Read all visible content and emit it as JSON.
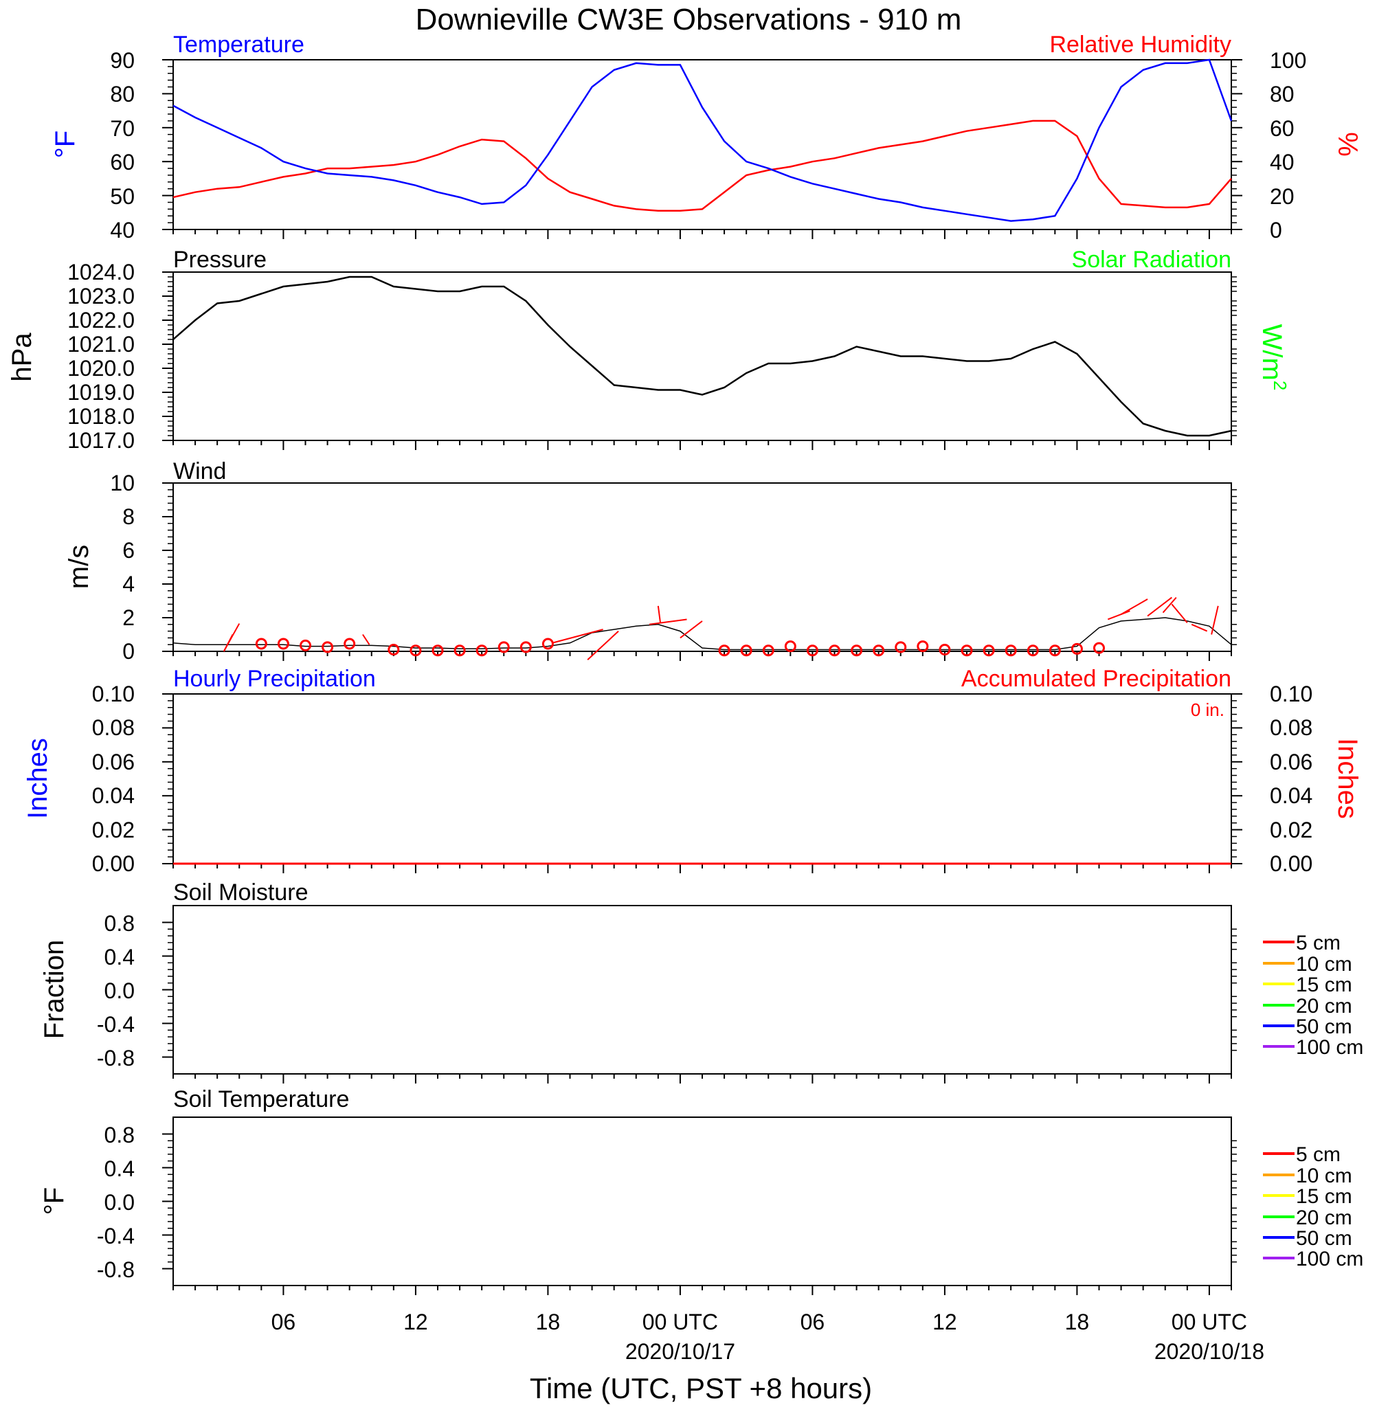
{
  "title": "Downieville CW3E Observations - 910 m",
  "xlabel": "Time (UTC, PST +8 hours)",
  "x_ticks": [
    {
      "h": 6,
      "label": "06",
      "sub": ""
    },
    {
      "h": 12,
      "label": "12",
      "sub": ""
    },
    {
      "h": 18,
      "label": "18",
      "sub": ""
    },
    {
      "h": 24,
      "label": "00 UTC",
      "sub": "2020/10/17"
    },
    {
      "h": 30,
      "label": "06",
      "sub": ""
    },
    {
      "h": 36,
      "label": "12",
      "sub": ""
    },
    {
      "h": 42,
      "label": "18",
      "sub": ""
    },
    {
      "h": 48,
      "label": "00 UTC",
      "sub": "2020/10/18"
    }
  ],
  "x_range_hours": [
    1,
    49
  ],
  "colors": {
    "temperature": "#0000ff",
    "humidity": "#ff0000",
    "pressure": "#000000",
    "solar": "#00ff00",
    "wind": "#000000",
    "wind_barb": "#ff0000",
    "hourly_precip": "#0000ff",
    "accum_precip": "#ff0000",
    "soil_legend": [
      "#ff0000",
      "#ffa500",
      "#ffff00",
      "#00ff00",
      "#0000ff",
      "#a020f0"
    ]
  },
  "panels": {
    "temp_rh": {
      "title_left": "Temperature",
      "title_right": "Relative Humidity",
      "ylabel_left": "°F",
      "ylabel_right": "%",
      "ylim_left": [
        40,
        90
      ],
      "ylim_right": [
        0,
        100
      ],
      "yticks_left": [
        "40",
        "50",
        "60",
        "70",
        "80",
        "90"
      ],
      "yticks_right": [
        "0",
        "20",
        "40",
        "60",
        "80",
        "100"
      ]
    },
    "pressure": {
      "title_left": "Pressure",
      "title_right": "Solar Radiation",
      "ylabel_left": "hPa",
      "ylabel_right": "W/m",
      "ylabel_right_sup": "2",
      "ylim": [
        1017,
        1024
      ],
      "yticks": [
        "1017.0",
        "1018.0",
        "1019.0",
        "1020.0",
        "1021.0",
        "1022.0",
        "1023.0",
        "1024.0"
      ]
    },
    "wind": {
      "title_left": "Wind",
      "ylabel_left": "m/s",
      "ylim": [
        0,
        10
      ],
      "yticks": [
        "0",
        "2",
        "4",
        "6",
        "8",
        "10"
      ]
    },
    "precip": {
      "title_left": "Hourly Precipitation",
      "title_right": "Accumulated Precipitation",
      "total_label": "0 in.",
      "ylabel_left": "Inches",
      "ylabel_right": "Inches",
      "ylim": [
        0,
        0.1
      ],
      "yticks": [
        "0.00",
        "0.02",
        "0.04",
        "0.06",
        "0.08",
        "0.10"
      ]
    },
    "soil_moisture": {
      "title_left": "Soil Moisture",
      "ylabel_left": "Fraction",
      "ylim": [
        -1,
        1
      ],
      "yticks": [
        "-0.8",
        "-0.4",
        "0.0",
        "0.4",
        "0.8"
      ],
      "legend": [
        "5 cm",
        "10 cm",
        "15 cm",
        "20 cm",
        "50 cm",
        "100 cm"
      ]
    },
    "soil_temp": {
      "title_left": "Soil Temperature",
      "ylabel_left": "°F",
      "ylim": [
        -1,
        1
      ],
      "yticks": [
        "-0.8",
        "-0.4",
        "0.0",
        "0.4",
        "0.8"
      ],
      "legend": [
        "5 cm",
        "10 cm",
        "15 cm",
        "20 cm",
        "50 cm",
        "100 cm"
      ]
    }
  },
  "chart_data": [
    {
      "type": "line",
      "title": "Temperature / Relative Humidity",
      "series": [
        {
          "name": "Temperature",
          "unit": "°F",
          "x_hours": [
            1,
            2,
            3,
            4,
            5,
            6,
            7,
            8,
            9,
            10,
            11,
            12,
            13,
            14,
            15,
            16,
            17,
            18,
            19,
            20,
            21,
            22,
            23,
            24,
            25,
            26,
            27,
            28,
            29,
            30,
            31,
            32,
            33,
            34,
            35,
            36,
            37,
            38,
            39,
            40,
            41,
            42,
            43,
            44,
            45,
            46,
            47,
            48,
            49
          ],
          "values": [
            76.5,
            73,
            70,
            67,
            64,
            60,
            58,
            56.5,
            56,
            55.5,
            54.5,
            53,
            51,
            49.5,
            47.5,
            48,
            53,
            62,
            72,
            82,
            87,
            89,
            88.5,
            88.5,
            76,
            66,
            60,
            58,
            55.5,
            53.5,
            52,
            50.5,
            49,
            48,
            46.5,
            45.5,
            44.5,
            43.5,
            42.5,
            43,
            44,
            55,
            70,
            82,
            87,
            89,
            89,
            90,
            72
          ]
        },
        {
          "name": "Relative Humidity",
          "unit": "%",
          "x_hours": [
            1,
            2,
            3,
            4,
            5,
            6,
            7,
            8,
            9,
            10,
            11,
            12,
            13,
            14,
            15,
            16,
            17,
            18,
            19,
            20,
            21,
            22,
            23,
            24,
            25,
            26,
            27,
            28,
            29,
            30,
            31,
            32,
            33,
            34,
            35,
            36,
            37,
            38,
            39,
            40,
            41,
            42,
            43,
            44,
            45,
            46,
            47,
            48,
            49
          ],
          "values": [
            19,
            22,
            24,
            25,
            28,
            31,
            33,
            36,
            36,
            37,
            38,
            40,
            44,
            49,
            53,
            52,
            42,
            30,
            22,
            18,
            14,
            12,
            11,
            11,
            12,
            22,
            32,
            35,
            37,
            40,
            42,
            45,
            48,
            50,
            52,
            55,
            58,
            60,
            62,
            64,
            64,
            55,
            30,
            15,
            14,
            13,
            13,
            15,
            30
          ]
        }
      ]
    },
    {
      "type": "line",
      "title": "Pressure",
      "series": [
        {
          "name": "Pressure",
          "unit": "hPa",
          "x_hours": [
            1,
            2,
            3,
            4,
            5,
            6,
            7,
            8,
            9,
            10,
            11,
            12,
            13,
            14,
            15,
            16,
            17,
            18,
            19,
            20,
            21,
            22,
            23,
            24,
            25,
            26,
            27,
            28,
            29,
            30,
            31,
            32,
            33,
            34,
            35,
            36,
            37,
            38,
            39,
            40,
            41,
            42,
            43,
            44,
            45,
            46,
            47,
            48,
            49
          ],
          "values": [
            1021.2,
            1022,
            1022.7,
            1022.8,
            1023.1,
            1023.4,
            1023.5,
            1023.6,
            1023.8,
            1023.8,
            1023.4,
            1023.3,
            1023.2,
            1023.2,
            1023.4,
            1023.4,
            1022.8,
            1021.8,
            1020.9,
            1020.1,
            1019.3,
            1019.2,
            1019.1,
            1019.1,
            1018.9,
            1019.2,
            1019.8,
            1020.2,
            1020.2,
            1020.3,
            1020.5,
            1020.9,
            1020.7,
            1020.5,
            1020.5,
            1020.4,
            1020.3,
            1020.3,
            1020.4,
            1020.8,
            1021.1,
            1020.6,
            1019.6,
            1018.6,
            1017.7,
            1017.4,
            1017.2,
            1017.2,
            1017.4
          ]
        }
      ]
    },
    {
      "type": "line",
      "title": "Wind",
      "series": [
        {
          "name": "Wind",
          "unit": "m/s",
          "x_hours": [
            1,
            2,
            3,
            4,
            5,
            6,
            7,
            8,
            9,
            10,
            11,
            12,
            13,
            14,
            15,
            16,
            17,
            18,
            19,
            20,
            21,
            22,
            23,
            24,
            25,
            26,
            27,
            28,
            29,
            30,
            31,
            32,
            33,
            34,
            35,
            36,
            37,
            38,
            39,
            40,
            41,
            42,
            43,
            44,
            45,
            46,
            47,
            48,
            49
          ],
          "values": [
            0.5,
            0.4,
            0.4,
            0.4,
            0.4,
            0.4,
            0.3,
            0.3,
            0.35,
            0.35,
            0.3,
            0.2,
            0.2,
            0.15,
            0.15,
            0.2,
            0.2,
            0.3,
            0.5,
            1.1,
            1.3,
            1.5,
            1.6,
            1.2,
            0.2,
            0.1,
            0.1,
            0.1,
            0.1,
            0.1,
            0.1,
            0.1,
            0.1,
            0.1,
            0.1,
            0.1,
            0.1,
            0.1,
            0.1,
            0.1,
            0.1,
            0.3,
            1.4,
            1.8,
            1.9,
            2,
            1.8,
            1.5,
            0.4
          ]
        }
      ],
      "hourly_markers_x": [
        5,
        6,
        7,
        8,
        9,
        11,
        12,
        13,
        14,
        15,
        16,
        17,
        18,
        26,
        27,
        28,
        29,
        30,
        31,
        32,
        33,
        34,
        35,
        36,
        37,
        38,
        39,
        40,
        41,
        42,
        43
      ],
      "hourly_markers_y": [
        0.45,
        0.45,
        0.35,
        0.25,
        0.45,
        0.1,
        0.05,
        0.05,
        0.05,
        0.05,
        0.25,
        0.25,
        0.45,
        0.05,
        0.05,
        0.05,
        0.3,
        0.05,
        0.05,
        0.05,
        0.05,
        0.25,
        0.3,
        0.1,
        0.05,
        0.05,
        0.05,
        0.05,
        0.05,
        0.15,
        0.2
      ],
      "barbs": [
        [
          3.3,
          0,
          4.0,
          1.65
        ],
        [
          3.3,
          0,
          3.7,
          1.0
        ],
        [
          9.9,
          0.4,
          9.6,
          1.0
        ],
        [
          18.2,
          0.5,
          20.5,
          1.3
        ],
        [
          21.2,
          1.2,
          19.8,
          -0.5
        ],
        [
          22.6,
          1.6,
          24.3,
          1.9
        ],
        [
          23.1,
          1.7,
          23.0,
          2.7
        ],
        [
          24.0,
          0.8,
          25.0,
          1.8
        ],
        [
          43.4,
          1.9,
          44.4,
          2.4
        ],
        [
          44.0,
          2.2,
          45.2,
          3.1
        ],
        [
          45.2,
          2.1,
          46.3,
          3.2
        ],
        [
          45.9,
          2.3,
          46.5,
          3.2
        ],
        [
          47.0,
          1.7,
          46.3,
          2.8
        ],
        [
          47.9,
          1.2,
          47.2,
          1.6
        ],
        [
          48.1,
          1.0,
          48.4,
          2.7
        ]
      ]
    },
    {
      "type": "line",
      "title": "Hourly Precipitation / Accumulated Precipitation",
      "series": [
        {
          "name": "Hourly Precipitation",
          "unit": "in",
          "x_hours": [
            1,
            49
          ],
          "values": [
            0,
            0
          ]
        },
        {
          "name": "Accumulated Precipitation",
          "unit": "in",
          "x_hours": [
            1,
            49
          ],
          "values": [
            0,
            0
          ]
        }
      ]
    },
    {
      "type": "line",
      "title": "Soil Moisture",
      "series": []
    },
    {
      "type": "line",
      "title": "Soil Temperature",
      "series": []
    }
  ]
}
